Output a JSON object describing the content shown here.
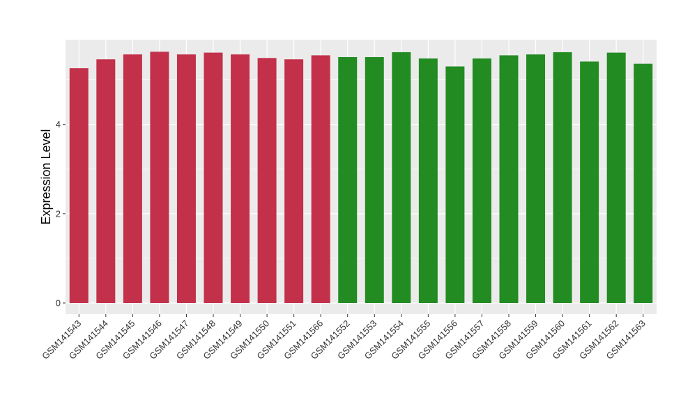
{
  "chart_data": {
    "type": "bar",
    "title": "",
    "xlabel": "",
    "ylabel": "Expression Level",
    "ylim": [
      -0.25,
      5.9
    ],
    "yticks": [
      0,
      2,
      4
    ],
    "grid": true,
    "legend": "none",
    "categories": [
      "GSM141543",
      "GSM141544",
      "GSM141545",
      "GSM141546",
      "GSM141547",
      "GSM141548",
      "GSM141549",
      "GSM141550",
      "GSM141551",
      "GSM141566",
      "GSM141552",
      "GSM141553",
      "GSM141554",
      "GSM141555",
      "GSM141556",
      "GSM141557",
      "GSM141558",
      "GSM141559",
      "GSM141560",
      "GSM141561",
      "GSM141562",
      "GSM141563"
    ],
    "values": [
      5.26,
      5.46,
      5.57,
      5.63,
      5.57,
      5.61,
      5.57,
      5.49,
      5.46,
      5.55,
      5.51,
      5.51,
      5.62,
      5.48,
      5.3,
      5.48,
      5.55,
      5.57,
      5.62,
      5.41,
      5.61,
      5.36
    ],
    "groups": [
      0,
      0,
      0,
      0,
      0,
      0,
      0,
      0,
      0,
      0,
      1,
      1,
      1,
      1,
      1,
      1,
      1,
      1,
      1,
      1,
      1,
      1
    ],
    "colors": {
      "group_colors": [
        "#c3304a",
        "#228b22"
      ],
      "panel_background": "#ebebeb",
      "gridline": "#ffffff"
    }
  }
}
